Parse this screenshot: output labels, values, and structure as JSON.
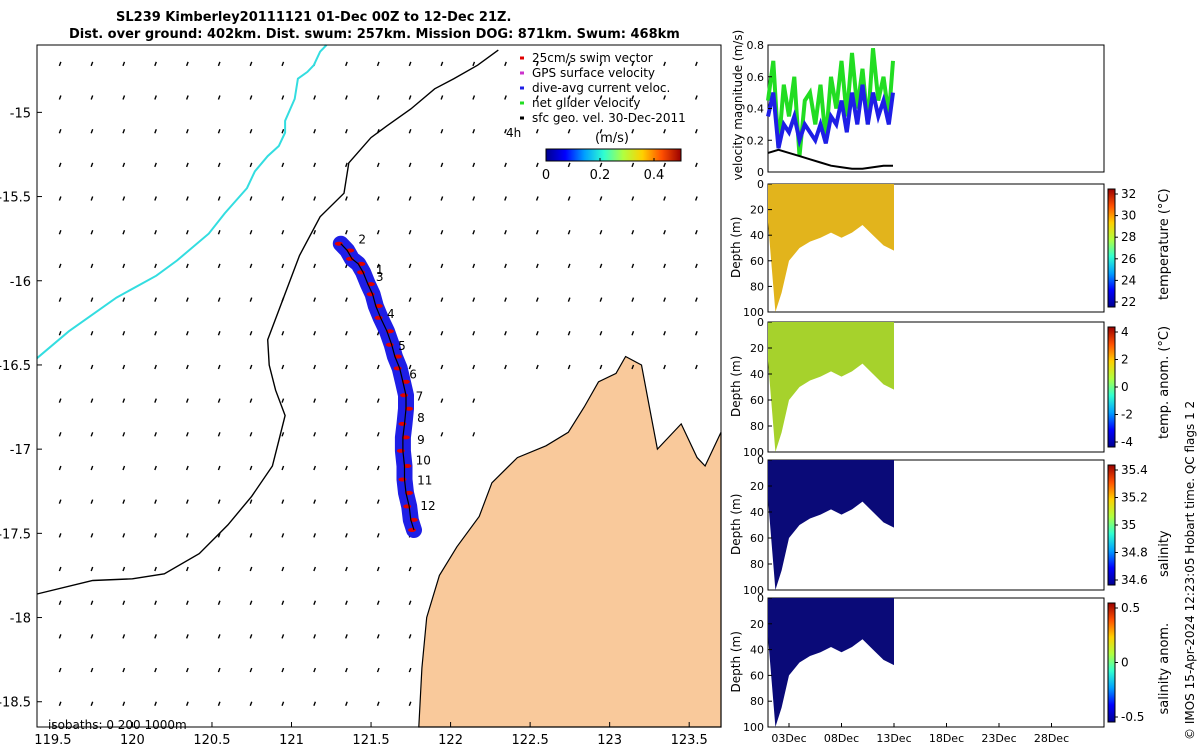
{
  "title": {
    "line1": "SL239 Kimberley20111121 01-Dec 00Z to 12-Dec 21Z.",
    "line2": "Dist. over ground: 402km. Dist. swum: 257km. Mission DOG: 871km. Swum: 468km"
  },
  "credit": "© IMOS 15-Apr-2024 12:23:05 Hobart time. QC flags 1  2",
  "colors": {
    "land": "#f9c99b",
    "glider_track": "#1e1ee6",
    "swim_vector": "#e00000",
    "coast": "#000000",
    "isobath": "#33dde0",
    "net_velocity": "#22dd22"
  },
  "chart_data": [
    {
      "type": "map",
      "title": "Glider track and surface currents",
      "xlim": [
        119.4,
        123.7
      ],
      "ylim": [
        -18.65,
        -14.6
      ],
      "xticks": [
        119.5,
        120,
        120.5,
        121,
        121.5,
        122,
        122.5,
        123,
        123.5
      ],
      "yticks": [
        -15,
        -15.5,
        -16,
        -16.5,
        -17,
        -17.5,
        -18,
        -18.5
      ],
      "xtick_labels": [
        "119.5",
        "120",
        "120.5",
        "121",
        "121.5",
        "122",
        "122.5",
        "123",
        "123.5"
      ],
      "ytick_labels": [
        "-15",
        "-15.5",
        "-16",
        "-16.5",
        "-17",
        "-17.5",
        "-18",
        "-18.5"
      ],
      "legend": [
        {
          "label": "25cm/s swim vector",
          "color": "#e00000"
        },
        {
          "label": "GPS surface velocity",
          "color": "#cc33cc"
        },
        {
          "label": "dive-avg current veloc.",
          "color": "#1e1ee6"
        },
        {
          "label": "net glider velocity",
          "color": "#22dd22"
        },
        {
          "label": "sfc geo. vel. 30-Dec-2011",
          "color": "#000000"
        }
      ],
      "colorbar": {
        "label": "(m/s)",
        "ticks": [
          "0",
          "0.2",
          "0.4"
        ],
        "range": [
          0,
          0.5
        ]
      },
      "marker_label": "4h",
      "isobaths_note": "isobaths: 0   200  1000m",
      "track_day_labels": [
        {
          "day": "1",
          "lon": 121.53,
          "lat": -15.96
        },
        {
          "day": "2",
          "lon": 121.42,
          "lat": -15.78
        },
        {
          "day": "3",
          "lon": 121.53,
          "lat": -16.0
        },
        {
          "day": "4",
          "lon": 121.6,
          "lat": -16.22
        },
        {
          "day": "5",
          "lon": 121.67,
          "lat": -16.41
        },
        {
          "day": "6",
          "lon": 121.74,
          "lat": -16.58
        },
        {
          "day": "7",
          "lon": 121.78,
          "lat": -16.71
        },
        {
          "day": "8",
          "lon": 121.79,
          "lat": -16.84
        },
        {
          "day": "9",
          "lon": 121.79,
          "lat": -16.97
        },
        {
          "day": "10",
          "lon": 121.78,
          "lat": -17.09
        },
        {
          "day": "11",
          "lon": 121.79,
          "lat": -17.21
        },
        {
          "day": "12",
          "lon": 121.81,
          "lat": -17.36
        }
      ],
      "track_points": [
        [
          121.31,
          -15.78
        ],
        [
          121.35,
          -15.82
        ],
        [
          121.38,
          -15.87
        ],
        [
          121.42,
          -15.9
        ],
        [
          121.45,
          -15.95
        ],
        [
          121.48,
          -16.02
        ],
        [
          121.51,
          -16.08
        ],
        [
          121.53,
          -16.15
        ],
        [
          121.56,
          -16.22
        ],
        [
          121.6,
          -16.3
        ],
        [
          121.63,
          -16.38
        ],
        [
          121.65,
          -16.45
        ],
        [
          121.68,
          -16.52
        ],
        [
          121.7,
          -16.6
        ],
        [
          121.72,
          -16.68
        ],
        [
          121.72,
          -16.76
        ],
        [
          121.71,
          -16.85
        ],
        [
          121.7,
          -16.93
        ],
        [
          121.7,
          -17.01
        ],
        [
          121.71,
          -17.1
        ],
        [
          121.71,
          -17.18
        ],
        [
          121.72,
          -17.26
        ],
        [
          121.74,
          -17.34
        ],
        [
          121.75,
          -17.42
        ],
        [
          121.77,
          -17.48
        ]
      ],
      "isobath_points": [
        [
          119.4,
          -16.46
        ],
        [
          119.6,
          -16.3
        ],
        [
          119.9,
          -16.1
        ],
        [
          120.15,
          -15.97
        ],
        [
          120.28,
          -15.88
        ],
        [
          120.48,
          -15.72
        ],
        [
          120.58,
          -15.6
        ],
        [
          120.72,
          -15.45
        ],
        [
          120.77,
          -15.35
        ],
        [
          120.85,
          -15.26
        ],
        [
          120.92,
          -15.2
        ],
        [
          120.96,
          -15.12
        ],
        [
          120.96,
          -15.05
        ],
        [
          121.02,
          -14.92
        ],
        [
          121.04,
          -14.8
        ],
        [
          121.1,
          -14.76
        ],
        [
          121.14,
          -14.72
        ],
        [
          121.18,
          -14.64
        ],
        [
          121.22,
          -14.6
        ]
      ],
      "depth_contour_points": [
        [
          119.4,
          -17.86
        ],
        [
          119.75,
          -17.78
        ],
        [
          120.0,
          -17.77
        ],
        [
          120.2,
          -17.74
        ],
        [
          120.42,
          -17.62
        ],
        [
          120.6,
          -17.45
        ],
        [
          120.75,
          -17.28
        ],
        [
          120.88,
          -17.1
        ],
        [
          120.92,
          -16.95
        ],
        [
          120.96,
          -16.8
        ],
        [
          120.9,
          -16.65
        ],
        [
          120.86,
          -16.5
        ],
        [
          120.85,
          -16.35
        ],
        [
          120.95,
          -16.1
        ],
        [
          121.05,
          -15.85
        ],
        [
          121.18,
          -15.62
        ],
        [
          121.33,
          -15.48
        ],
        [
          121.36,
          -15.3
        ],
        [
          121.5,
          -15.15
        ],
        [
          121.6,
          -15.08
        ],
        [
          121.75,
          -14.98
        ],
        [
          121.9,
          -14.86
        ],
        [
          122.02,
          -14.8
        ],
        [
          122.17,
          -14.72
        ],
        [
          122.3,
          -14.63
        ]
      ],
      "land_points": [
        [
          121.8,
          -18.65
        ],
        [
          121.82,
          -18.3
        ],
        [
          121.85,
          -18.0
        ],
        [
          121.93,
          -17.75
        ],
        [
          122.04,
          -17.58
        ],
        [
          122.18,
          -17.4
        ],
        [
          122.26,
          -17.2
        ],
        [
          122.42,
          -17.05
        ],
        [
          122.6,
          -16.98
        ],
        [
          122.74,
          -16.9
        ],
        [
          122.84,
          -16.75
        ],
        [
          122.93,
          -16.6
        ],
        [
          123.04,
          -16.55
        ],
        [
          123.1,
          -16.45
        ],
        [
          123.2,
          -16.5
        ],
        [
          123.25,
          -16.75
        ],
        [
          123.3,
          -17.0
        ],
        [
          123.45,
          -16.85
        ],
        [
          123.55,
          -17.05
        ],
        [
          123.6,
          -17.1
        ],
        [
          123.7,
          -16.9
        ],
        [
          123.7,
          -18.65
        ]
      ]
    },
    {
      "type": "line",
      "title": "",
      "ylabel": "velocity magnitude (m/s)",
      "ylim": [
        0,
        0.8
      ],
      "yticks": [
        "0",
        "0.2",
        "0.4",
        "0.6",
        "0.8"
      ],
      "xlim_days": [
        1,
        33
      ],
      "series": [
        {
          "name": "net glider velocity",
          "color": "#22dd22",
          "x": [
            1,
            1.5,
            2,
            2.5,
            3,
            3.5,
            4,
            4.5,
            5,
            5.5,
            6,
            6.5,
            7,
            7.5,
            8,
            8.5,
            9,
            9.5,
            10,
            10.5,
            11,
            11.5,
            12,
            12.5,
            12.9
          ],
          "values": [
            0.45,
            0.7,
            0.15,
            0.55,
            0.35,
            0.6,
            0.1,
            0.45,
            0.5,
            0.3,
            0.55,
            0.2,
            0.6,
            0.4,
            0.7,
            0.35,
            0.75,
            0.4,
            0.65,
            0.3,
            0.78,
            0.45,
            0.6,
            0.35,
            0.7
          ]
        },
        {
          "name": "dive-avg current veloc.",
          "color": "#1e1ee6",
          "x": [
            1,
            1.5,
            2,
            2.5,
            3,
            3.5,
            4,
            4.5,
            5,
            5.5,
            6,
            6.5,
            7,
            7.5,
            8,
            8.5,
            9,
            9.5,
            10,
            10.5,
            11,
            11.5,
            12,
            12.5,
            12.9
          ],
          "values": [
            0.35,
            0.5,
            0.15,
            0.3,
            0.25,
            0.35,
            0.2,
            0.3,
            0.25,
            0.2,
            0.3,
            0.18,
            0.35,
            0.3,
            0.45,
            0.25,
            0.5,
            0.3,
            0.55,
            0.3,
            0.5,
            0.35,
            0.45,
            0.3,
            0.5
          ]
        },
        {
          "name": "sfc geo. vel.",
          "color": "#000000",
          "x": [
            1,
            2,
            3,
            4,
            5,
            6,
            7,
            8,
            9,
            10,
            11,
            12,
            12.9
          ],
          "values": [
            0.12,
            0.14,
            0.12,
            0.1,
            0.08,
            0.06,
            0.04,
            0.03,
            0.02,
            0.02,
            0.03,
            0.04,
            0.04
          ]
        }
      ]
    },
    {
      "type": "heatmap",
      "ylabel": "Depth (m)",
      "cbar_label": "temperature (°C)",
      "cbar_ticks": [
        "32",
        "30",
        "28",
        "26",
        "24",
        "22"
      ],
      "yticks": [
        "0",
        "20",
        "40",
        "60",
        "80",
        "100"
      ],
      "ylim": [
        0,
        100
      ],
      "fill": "#e2b41c",
      "depth_profile": [
        [
          1,
          30
        ],
        [
          1.7,
          100
        ],
        [
          2.3,
          85
        ],
        [
          3,
          60
        ],
        [
          4,
          50
        ],
        [
          5,
          45
        ],
        [
          6,
          42
        ],
        [
          7,
          38
        ],
        [
          8,
          42
        ],
        [
          9,
          38
        ],
        [
          10,
          32
        ],
        [
          11,
          40
        ],
        [
          12,
          48
        ],
        [
          13,
          52
        ]
      ]
    },
    {
      "type": "heatmap",
      "ylabel": "Depth (m)",
      "cbar_label": "temp. anom. (°C)",
      "cbar_ticks": [
        "4",
        "2",
        "0",
        "-2",
        "-4"
      ],
      "yticks": [
        "0",
        "20",
        "40",
        "60",
        "80",
        "100"
      ],
      "ylim": [
        0,
        100
      ],
      "fill": "#a6d22c",
      "depth_profile": [
        [
          1,
          30
        ],
        [
          1.7,
          100
        ],
        [
          2.3,
          85
        ],
        [
          3,
          60
        ],
        [
          4,
          50
        ],
        [
          5,
          45
        ],
        [
          6,
          42
        ],
        [
          7,
          38
        ],
        [
          8,
          42
        ],
        [
          9,
          38
        ],
        [
          10,
          32
        ],
        [
          11,
          40
        ],
        [
          12,
          48
        ],
        [
          13,
          52
        ]
      ]
    },
    {
      "type": "heatmap",
      "ylabel": "Depth (m)",
      "cbar_label": "salinity",
      "cbar_ticks": [
        "35.4",
        "35.2",
        "35",
        "34.8",
        "34.6"
      ],
      "yticks": [
        "0",
        "20",
        "40",
        "60",
        "80",
        "100"
      ],
      "ylim": [
        0,
        100
      ],
      "fill": "#0a0a78",
      "depth_profile": [
        [
          1,
          30
        ],
        [
          1.7,
          100
        ],
        [
          2.3,
          85
        ],
        [
          3,
          60
        ],
        [
          4,
          50
        ],
        [
          5,
          45
        ],
        [
          6,
          42
        ],
        [
          7,
          38
        ],
        [
          8,
          42
        ],
        [
          9,
          38
        ],
        [
          10,
          32
        ],
        [
          11,
          40
        ],
        [
          12,
          48
        ],
        [
          13,
          52
        ]
      ]
    },
    {
      "type": "heatmap",
      "ylabel": "Depth (m)",
      "cbar_label": "salinity anom.",
      "cbar_ticks": [
        "0.5",
        "0",
        "-0.5"
      ],
      "yticks": [
        "0",
        "20",
        "40",
        "60",
        "80",
        "100"
      ],
      "ylim": [
        0,
        100
      ],
      "fill": "#0a0a78",
      "depth_profile": [
        [
          1,
          30
        ],
        [
          1.7,
          100
        ],
        [
          2.3,
          85
        ],
        [
          3,
          60
        ],
        [
          4,
          50
        ],
        [
          5,
          45
        ],
        [
          6,
          42
        ],
        [
          7,
          38
        ],
        [
          8,
          42
        ],
        [
          9,
          38
        ],
        [
          10,
          32
        ],
        [
          11,
          40
        ],
        [
          12,
          48
        ],
        [
          13,
          52
        ]
      ]
    }
  ],
  "time_axis": {
    "xlim_days": [
      1,
      33
    ],
    "ticks": [
      {
        "day": 3,
        "label": "03Dec"
      },
      {
        "day": 8,
        "label": "08Dec"
      },
      {
        "day": 13,
        "label": "13Dec"
      },
      {
        "day": 18,
        "label": "18Dec"
      },
      {
        "day": 23,
        "label": "23Dec"
      },
      {
        "day": 28,
        "label": "28Dec"
      }
    ]
  }
}
